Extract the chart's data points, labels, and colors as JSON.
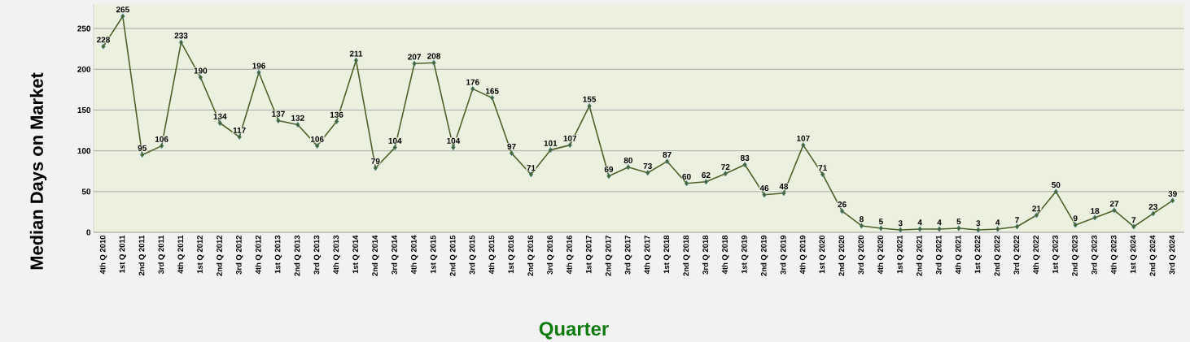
{
  "chart_data": {
    "type": "line",
    "ylabel": "Median Days on Market",
    "xlabel": "Quarter",
    "categories": [
      "4th Q 2010",
      "1st Q 2011",
      "2nd Q 2011",
      "3rd Q 2011",
      "4th Q 2011",
      "1st Q 2012",
      "2nd Q 2012",
      "3rd Q 2012",
      "4th Q 2012",
      "1st Q 2013",
      "2nd Q 2013",
      "3rd Q 2013",
      "4th Q 2013",
      "1st Q 2014",
      "2nd Q 2014",
      "3rd Q 2014",
      "4th Q 2014",
      "1st Q 2015",
      "2nd Q 2015",
      "3rd Q 2015",
      "4th Q 2015",
      "1st Q 2016",
      "2nd Q 2016",
      "3rd Q 2016",
      "4th Q 2016",
      "1st Q 2017",
      "2nd Q 2017",
      "3rd Q 2017",
      "4th Q 2017",
      "1st Q 2018",
      "2nd Q 2018",
      "3rd Q 2018",
      "4th Q 2018",
      "1st Q 2019",
      "2nd Q 2019",
      "3rd Q 2019",
      "4th Q 2019",
      "1st Q 2020",
      "2nd Q 2020",
      "3rd Q 2020",
      "4th Q 2020",
      "1st Q 2021",
      "2nd Q 2021",
      "3rd Q 2021",
      "4th Q 2021",
      "1st Q 2022",
      "2nd Q 2022",
      "3rd Q 2022",
      "4th Q 2022",
      "1st Q 2023",
      "2nd Q 2023",
      "3rd Q 2023",
      "4th Q 2023",
      "1st Q 2024",
      "2nd Q 2024",
      "3rd Q 2024"
    ],
    "values": [
      228,
      265,
      95,
      106,
      233,
      190,
      134,
      117,
      196,
      137,
      132,
      106,
      136,
      211,
      79,
      104,
      207,
      208,
      104,
      176,
      165,
      97,
      71,
      101,
      107,
      155,
      69,
      80,
      73,
      87,
      60,
      62,
      72,
      83,
      46,
      48,
      107,
      71,
      26,
      8,
      5,
      3,
      4,
      4,
      5,
      3,
      4,
      7,
      21,
      50,
      9,
      18,
      27,
      7,
      23,
      39
    ],
    "color": "#4f6228",
    "ylim": [
      0,
      280
    ],
    "yticks": [
      0,
      50,
      100,
      150,
      200,
      250
    ],
    "grid": "y",
    "marker": "diamond",
    "line_style": "solid",
    "data_labels": true
  }
}
